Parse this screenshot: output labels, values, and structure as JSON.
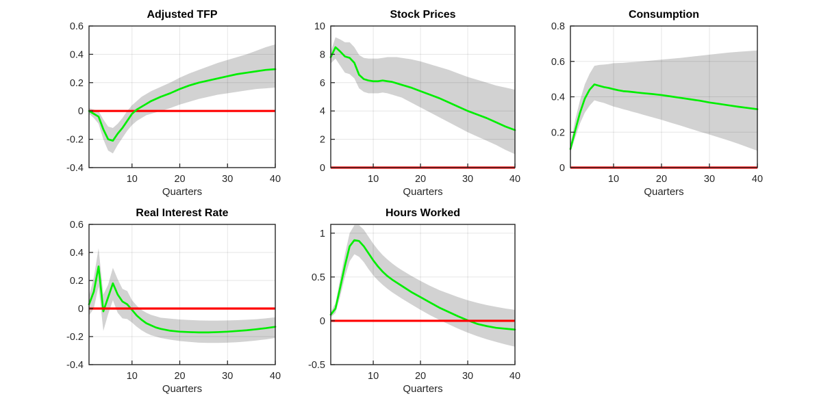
{
  "figure": {
    "background": "#ffffff",
    "rows": 2,
    "cols": 3,
    "style": {
      "line_color": "#00ee00",
      "zero_line_color": "#ff0000",
      "band_color": "#d2d2d2",
      "axis_color": "#262626",
      "grid_color": "rgba(0,0,0,0.10)",
      "tick_label_color": "#262626"
    }
  },
  "chart_data": [
    {
      "id": "adjusted-tfp",
      "type": "line",
      "title": "Adjusted TFP",
      "xlabel": "Quarters",
      "xlim": [
        1,
        40
      ],
      "ylim": [
        -0.4,
        0.6
      ],
      "xticks": [
        10,
        20,
        30,
        40
      ],
      "xtick_labels": [
        "10",
        "20",
        "30",
        "40"
      ],
      "yticks": [
        -0.4,
        -0.2,
        0,
        0.2,
        0.4,
        0.6
      ],
      "ytick_labels": [
        "-0.4",
        "-0.2",
        "0",
        "0.2",
        "0.4",
        "0.6"
      ],
      "grid": true,
      "legend": "none",
      "zero_line": 0,
      "median_on_top": true,
      "x": [
        1,
        2,
        3,
        4,
        5,
        6,
        7,
        8,
        9,
        10,
        11,
        12,
        13,
        14,
        15,
        16,
        18,
        20,
        22,
        24,
        26,
        28,
        30,
        32,
        34,
        36,
        38,
        40
      ],
      "median": [
        0.0,
        -0.02,
        -0.04,
        -0.13,
        -0.2,
        -0.21,
        -0.16,
        -0.12,
        -0.07,
        -0.02,
        0.01,
        0.03,
        0.05,
        0.07,
        0.085,
        0.1,
        0.125,
        0.155,
        0.18,
        0.2,
        0.215,
        0.23,
        0.245,
        0.26,
        0.27,
        0.28,
        0.29,
        0.295
      ],
      "band_upper": [
        0.02,
        0.01,
        0.0,
        -0.06,
        -0.11,
        -0.12,
        -0.09,
        -0.05,
        0.0,
        0.04,
        0.07,
        0.1,
        0.12,
        0.14,
        0.155,
        0.17,
        0.2,
        0.235,
        0.265,
        0.29,
        0.315,
        0.34,
        0.36,
        0.38,
        0.4,
        0.425,
        0.45,
        0.47
      ],
      "band_lower": [
        -0.02,
        -0.05,
        -0.09,
        -0.2,
        -0.28,
        -0.3,
        -0.24,
        -0.19,
        -0.14,
        -0.1,
        -0.07,
        -0.05,
        -0.03,
        -0.02,
        -0.01,
        0.0,
        0.02,
        0.045,
        0.065,
        0.085,
        0.1,
        0.115,
        0.125,
        0.135,
        0.145,
        0.155,
        0.16,
        0.165
      ]
    },
    {
      "id": "stock-prices",
      "type": "line",
      "title": "Stock Prices",
      "xlabel": "Quarters",
      "xlim": [
        1,
        40
      ],
      "ylim": [
        0,
        10
      ],
      "xticks": [
        10,
        20,
        30,
        40
      ],
      "xtick_labels": [
        "10",
        "20",
        "30",
        "40"
      ],
      "yticks": [
        0,
        2,
        4,
        6,
        8,
        10
      ],
      "ytick_labels": [
        "0",
        "2",
        "4",
        "6",
        "8",
        "10"
      ],
      "grid": true,
      "legend": "none",
      "zero_line": 0,
      "median_on_top": false,
      "x": [
        1,
        2,
        3,
        4,
        5,
        6,
        7,
        8,
        9,
        10,
        11,
        12,
        13,
        14,
        15,
        16,
        18,
        20,
        22,
        24,
        26,
        28,
        30,
        32,
        34,
        36,
        38,
        40
      ],
      "median": [
        7.8,
        8.5,
        8.2,
        7.85,
        7.75,
        7.4,
        6.55,
        6.25,
        6.15,
        6.1,
        6.1,
        6.15,
        6.1,
        6.05,
        5.95,
        5.85,
        5.65,
        5.4,
        5.15,
        4.9,
        4.6,
        4.3,
        4.0,
        3.75,
        3.5,
        3.2,
        2.9,
        2.65
      ],
      "band_upper": [
        8.2,
        9.2,
        9.05,
        8.85,
        8.85,
        8.5,
        7.95,
        7.75,
        7.7,
        7.7,
        7.7,
        7.75,
        7.8,
        7.8,
        7.8,
        7.75,
        7.65,
        7.5,
        7.3,
        7.1,
        6.9,
        6.65,
        6.4,
        6.2,
        6.0,
        5.8,
        5.65,
        5.5
      ],
      "band_lower": [
        7.35,
        7.7,
        7.2,
        6.7,
        6.6,
        6.3,
        5.6,
        5.35,
        5.25,
        5.25,
        5.25,
        5.3,
        5.25,
        5.15,
        5.05,
        4.95,
        4.6,
        4.25,
        3.9,
        3.55,
        3.2,
        2.85,
        2.5,
        2.2,
        1.9,
        1.6,
        1.25,
        0.95
      ]
    },
    {
      "id": "consumption",
      "type": "line",
      "title": "Consumption",
      "xlabel": "Quarters",
      "xlim": [
        1,
        40
      ],
      "ylim": [
        0,
        0.8
      ],
      "xticks": [
        10,
        20,
        30,
        40
      ],
      "xtick_labels": [
        "10",
        "20",
        "30",
        "40"
      ],
      "yticks": [
        0,
        0.2,
        0.4,
        0.6,
        0.8
      ],
      "ytick_labels": [
        "0",
        "0.2",
        "0.4",
        "0.6",
        "0.8"
      ],
      "grid": true,
      "legend": "none",
      "zero_line": 0,
      "median_on_top": false,
      "x": [
        1,
        2,
        3,
        4,
        5,
        6,
        7,
        8,
        9,
        10,
        11,
        12,
        13,
        14,
        15,
        16,
        18,
        20,
        22,
        24,
        26,
        28,
        30,
        32,
        34,
        36,
        38,
        40
      ],
      "median": [
        0.105,
        0.21,
        0.31,
        0.39,
        0.44,
        0.47,
        0.462,
        0.455,
        0.45,
        0.443,
        0.437,
        0.432,
        0.43,
        0.427,
        0.424,
        0.421,
        0.416,
        0.41,
        0.402,
        0.394,
        0.386,
        0.378,
        0.368,
        0.36,
        0.352,
        0.344,
        0.337,
        0.33
      ],
      "band_upper": [
        0.13,
        0.27,
        0.38,
        0.47,
        0.53,
        0.575,
        0.58,
        0.582,
        0.585,
        0.59,
        0.591,
        0.592,
        0.594,
        0.596,
        0.598,
        0.6,
        0.605,
        0.61,
        0.615,
        0.62,
        0.626,
        0.632,
        0.638,
        0.644,
        0.65,
        0.654,
        0.658,
        0.662
      ],
      "band_lower": [
        0.085,
        0.17,
        0.25,
        0.31,
        0.35,
        0.38,
        0.372,
        0.365,
        0.355,
        0.345,
        0.338,
        0.33,
        0.323,
        0.315,
        0.308,
        0.3,
        0.285,
        0.27,
        0.253,
        0.237,
        0.22,
        0.203,
        0.187,
        0.17,
        0.153,
        0.135,
        0.115,
        0.095
      ]
    },
    {
      "id": "real-interest-rate",
      "type": "line",
      "title": "Real Interest Rate",
      "xlabel": "Quarters",
      "xlim": [
        1,
        40
      ],
      "ylim": [
        -0.4,
        0.6
      ],
      "xticks": [
        10,
        20,
        30,
        40
      ],
      "xtick_labels": [
        "10",
        "20",
        "30",
        "40"
      ],
      "yticks": [
        -0.4,
        -0.2,
        0,
        0.2,
        0.4,
        0.6
      ],
      "ytick_labels": [
        "-0.4",
        "-0.2",
        "0",
        "0.2",
        "0.4",
        "0.6"
      ],
      "grid": true,
      "legend": "none",
      "zero_line": 0,
      "median_on_top": false,
      "x": [
        1,
        2,
        3,
        4,
        5,
        6,
        7,
        8,
        9,
        10,
        11,
        12,
        13,
        14,
        15,
        16,
        18,
        20,
        22,
        24,
        26,
        28,
        30,
        32,
        34,
        36,
        38,
        40
      ],
      "median": [
        0.03,
        0.12,
        0.3,
        -0.02,
        0.08,
        0.18,
        0.1,
        0.05,
        0.03,
        -0.01,
        -0.05,
        -0.08,
        -0.105,
        -0.12,
        -0.135,
        -0.145,
        -0.158,
        -0.165,
        -0.168,
        -0.17,
        -0.17,
        -0.168,
        -0.165,
        -0.16,
        -0.155,
        -0.148,
        -0.14,
        -0.13
      ],
      "band_upper": [
        0.09,
        0.22,
        0.43,
        0.1,
        0.17,
        0.29,
        0.21,
        0.14,
        0.125,
        0.06,
        0.02,
        -0.01,
        -0.03,
        -0.045,
        -0.055,
        -0.065,
        -0.072,
        -0.078,
        -0.082,
        -0.085,
        -0.086,
        -0.086,
        -0.085,
        -0.083,
        -0.08,
        -0.076,
        -0.07,
        -0.062
      ],
      "band_lower": [
        -0.05,
        0.0,
        0.16,
        -0.16,
        -0.04,
        0.06,
        -0.03,
        -0.07,
        -0.075,
        -0.1,
        -0.13,
        -0.155,
        -0.175,
        -0.19,
        -0.2,
        -0.21,
        -0.222,
        -0.232,
        -0.238,
        -0.243,
        -0.245,
        -0.245,
        -0.243,
        -0.24,
        -0.235,
        -0.228,
        -0.22,
        -0.21
      ]
    },
    {
      "id": "hours-worked",
      "type": "line",
      "title": "Hours Worked",
      "xlabel": "Quarters",
      "xlim": [
        1,
        40
      ],
      "ylim": [
        -0.5,
        1.1
      ],
      "xticks": [
        10,
        20,
        30,
        40
      ],
      "xtick_labels": [
        "10",
        "20",
        "30",
        "40"
      ],
      "yticks": [
        -0.5,
        0,
        0.5,
        1
      ],
      "ytick_labels": [
        "-0.5",
        "0",
        "0.5",
        "1"
      ],
      "grid": true,
      "legend": "none",
      "zero_line": 0,
      "median_on_top": false,
      "x": [
        1,
        2,
        3,
        4,
        5,
        6,
        7,
        8,
        9,
        10,
        11,
        12,
        13,
        14,
        15,
        16,
        18,
        20,
        22,
        24,
        26,
        28,
        30,
        32,
        34,
        36,
        38,
        40
      ],
      "median": [
        0.07,
        0.14,
        0.38,
        0.63,
        0.85,
        0.92,
        0.91,
        0.85,
        0.77,
        0.69,
        0.62,
        0.56,
        0.51,
        0.47,
        0.435,
        0.4,
        0.33,
        0.27,
        0.21,
        0.15,
        0.1,
        0.05,
        0.005,
        -0.035,
        -0.06,
        -0.08,
        -0.09,
        -0.1
      ],
      "band_upper": [
        0.1,
        0.2,
        0.48,
        0.76,
        1.0,
        1.09,
        1.09,
        1.04,
        0.96,
        0.88,
        0.81,
        0.75,
        0.7,
        0.655,
        0.615,
        0.58,
        0.515,
        0.455,
        0.4,
        0.35,
        0.31,
        0.27,
        0.235,
        0.205,
        0.18,
        0.16,
        0.14,
        0.125
      ],
      "band_lower": [
        0.04,
        0.09,
        0.28,
        0.5,
        0.68,
        0.76,
        0.73,
        0.67,
        0.59,
        0.52,
        0.46,
        0.41,
        0.365,
        0.325,
        0.29,
        0.255,
        0.19,
        0.125,
        0.065,
        0.01,
        -0.04,
        -0.09,
        -0.135,
        -0.175,
        -0.21,
        -0.24,
        -0.27,
        -0.295
      ]
    }
  ]
}
